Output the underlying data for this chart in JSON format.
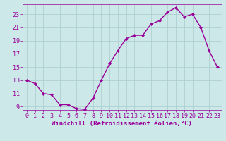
{
  "x": [
    0,
    1,
    2,
    3,
    4,
    5,
    6,
    7,
    8,
    9,
    10,
    11,
    12,
    13,
    14,
    15,
    16,
    17,
    18,
    19,
    20,
    21,
    22,
    23
  ],
  "y": [
    13.0,
    12.5,
    11.0,
    10.8,
    9.3,
    9.3,
    8.7,
    8.6,
    10.3,
    13.0,
    15.5,
    17.5,
    19.3,
    19.8,
    19.8,
    21.5,
    22.0,
    23.3,
    24.0,
    22.6,
    23.0,
    21.0,
    17.5,
    15.0
  ],
  "line_color": "#990099",
  "marker": "D",
  "marker_size": 2,
  "bg_color": "#cce8e8",
  "grid_color": "#aacccc",
  "xlabel": "Windchill (Refroidissement éolien,°C)",
  "ylim": [
    8.5,
    24.5
  ],
  "yticks": [
    9,
    11,
    13,
    15,
    17,
    19,
    21,
    23
  ],
  "xlim": [
    -0.5,
    23.5
  ],
  "xticks": [
    0,
    1,
    2,
    3,
    4,
    5,
    6,
    7,
    8,
    9,
    10,
    11,
    12,
    13,
    14,
    15,
    16,
    17,
    18,
    19,
    20,
    21,
    22,
    23
  ],
  "tick_color": "#990099",
  "label_color": "#990099",
  "axis_color": "#990099",
  "font_size": 6.0,
  "xlabel_fontsize": 6.5,
  "linewidth": 1.0
}
